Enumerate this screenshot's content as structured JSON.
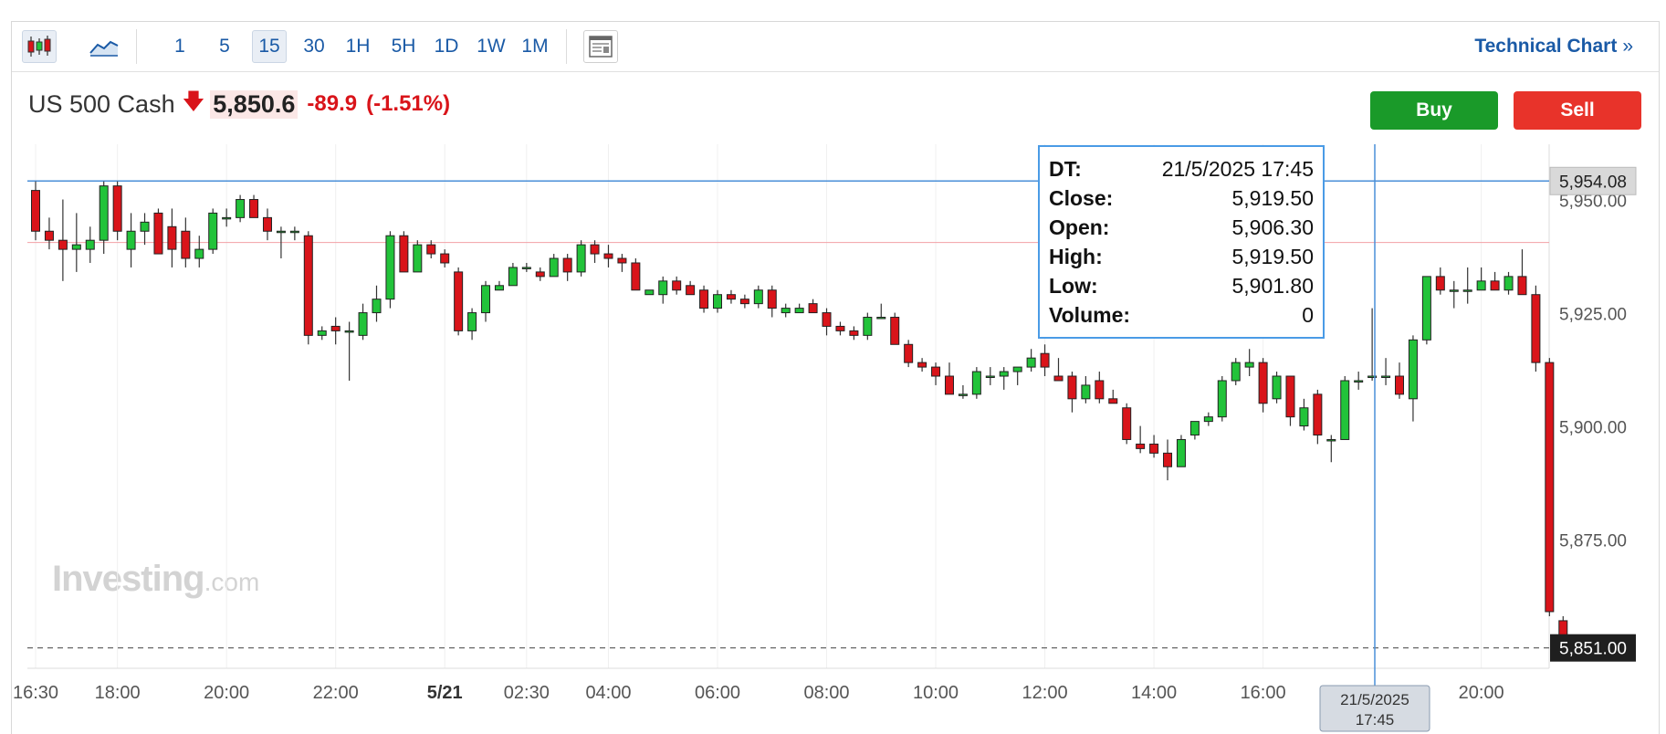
{
  "toolbar": {
    "intervals": [
      "1",
      "5",
      "15",
      "30",
      "1H",
      "5H",
      "1D",
      "1W",
      "1M"
    ],
    "selected_interval": "15",
    "technical_chart_label": "Technical Chart",
    "technical_chart_chevron": "»"
  },
  "instrument": {
    "name": "US 500 Cash",
    "price": "5,850.6",
    "change": "-89.9",
    "change_pct": "(-1.51%)",
    "direction": "down"
  },
  "actions": {
    "buy_label": "Buy",
    "sell_label": "Sell"
  },
  "colors": {
    "up": "#22c33a",
    "down": "#d9141a",
    "accent": "#1a5aa6",
    "crosshair": "#4a8fd8"
  },
  "tooltip": {
    "dt_label": "DT:",
    "dt": "21/5/2025 17:45",
    "close_label": "Close:",
    "close": "5,919.50",
    "open_label": "Open:",
    "open": "5,906.30",
    "high_label": "High:",
    "high": "5,919.50",
    "low_label": "Low:",
    "low": "5,901.80",
    "volume_label": "Volume:",
    "volume": "0"
  },
  "watermark": {
    "brand": "Investing",
    "suffix": ".com"
  },
  "chart_data": {
    "type": "candlestick",
    "title": "",
    "xlabel": "",
    "ylabel": "",
    "ylim": [
      5846.5,
      5962.2
    ],
    "y_ticks": [
      "5,875.00",
      "5,900.00",
      "5,925.00",
      "5,950.00"
    ],
    "y_tick_values": [
      5875,
      5900,
      5925,
      5950
    ],
    "x_ticks": [
      "16:30",
      "18:00",
      "20:00",
      "22:00",
      "5/21",
      "02:30",
      "04:00",
      "06:00",
      "08:00",
      "10:00",
      "12:00",
      "14:00",
      "16:00",
      "20:00"
    ],
    "bold_x_ticks": [
      "5/21"
    ],
    "reference_lines": [
      {
        "value": 5954.08,
        "label": "5,954.08",
        "style": "solid-blue"
      },
      {
        "value": 5940.5,
        "label": "",
        "style": "solid-pink"
      },
      {
        "value": 5851.0,
        "label": "5,851.00",
        "style": "dashed-last"
      }
    ],
    "crosshair": {
      "x_label_date": "21/5/2025",
      "x_label_time": "17:45"
    },
    "grid": "vertical-only",
    "candles": [
      [
        5952,
        5954,
        5941,
        5943
      ],
      [
        5943,
        5946,
        5939,
        5941
      ],
      [
        5941,
        5950,
        5932,
        5939
      ],
      [
        5939,
        5947,
        5934,
        5940
      ],
      [
        5939,
        5944,
        5936,
        5941
      ],
      [
        5941,
        5954,
        5938,
        5953
      ],
      [
        5953,
        5954,
        5941,
        5943
      ],
      [
        5939,
        5947,
        5935,
        5943
      ],
      [
        5943,
        5947,
        5940,
        5945
      ],
      [
        5947,
        5948,
        5938,
        5938
      ],
      [
        5944,
        5948,
        5935,
        5939
      ],
      [
        5943,
        5946,
        5935,
        5937
      ],
      [
        5937,
        5942,
        5935,
        5939
      ],
      [
        5939,
        5948,
        5938,
        5947
      ],
      [
        5946,
        5948,
        5944,
        5946
      ],
      [
        5946,
        5951,
        5945,
        5950
      ],
      [
        5950,
        5951,
        5946,
        5946
      ],
      [
        5946,
        5948,
        5941,
        5943
      ],
      [
        5943,
        5944,
        5937,
        5943
      ],
      [
        5943,
        5944,
        5941,
        5943
      ],
      [
        5942,
        5943,
        5918,
        5920
      ],
      [
        5920,
        5922,
        5919,
        5921
      ],
      [
        5922,
        5924,
        5918,
        5921
      ],
      [
        5921,
        5923,
        5910,
        5921
      ],
      [
        5920,
        5927,
        5919,
        5925
      ],
      [
        5925,
        5931,
        5923,
        5928
      ],
      [
        5928,
        5943,
        5926,
        5942
      ],
      [
        5942,
        5943,
        5934,
        5934
      ],
      [
        5934,
        5941,
        5934,
        5940
      ],
      [
        5940,
        5941,
        5937,
        5938
      ],
      [
        5938,
        5939,
        5935,
        5936
      ],
      [
        5934,
        5935,
        5920,
        5921
      ],
      [
        5921,
        5926,
        5919,
        5925
      ],
      [
        5925,
        5932,
        5923,
        5931
      ],
      [
        5930,
        5932,
        5930,
        5931
      ],
      [
        5931,
        5936,
        5931,
        5935
      ],
      [
        5935,
        5936,
        5934,
        5935
      ],
      [
        5934,
        5935,
        5932,
        5933
      ],
      [
        5933,
        5938,
        5933,
        5937
      ],
      [
        5937,
        5938,
        5932,
        5934
      ],
      [
        5934,
        5941,
        5933,
        5940
      ],
      [
        5940,
        5941,
        5936,
        5938
      ],
      [
        5938,
        5940,
        5935,
        5937
      ],
      [
        5937,
        5938,
        5934,
        5936
      ],
      [
        5936,
        5937,
        5930,
        5930
      ],
      [
        5929,
        5930,
        5929,
        5930
      ],
      [
        5929,
        5933,
        5927,
        5932
      ],
      [
        5932,
        5933,
        5929,
        5930
      ],
      [
        5931,
        5932,
        5929,
        5929
      ],
      [
        5930,
        5931,
        5925,
        5926
      ],
      [
        5926,
        5930,
        5925,
        5929
      ],
      [
        5929,
        5930,
        5927,
        5928
      ],
      [
        5928,
        5929,
        5926,
        5927
      ],
      [
        5927,
        5931,
        5926,
        5930
      ],
      [
        5930,
        5931,
        5924,
        5926
      ],
      [
        5925,
        5927,
        5924,
        5926
      ],
      [
        5925,
        5927,
        5925,
        5926
      ],
      [
        5927,
        5928,
        5925,
        5925
      ],
      [
        5925,
        5926,
        5920,
        5922
      ],
      [
        5922,
        5923,
        5920,
        5921
      ],
      [
        5921,
        5922,
        5919,
        5920
      ],
      [
        5920,
        5925,
        5919,
        5924
      ],
      [
        5924,
        5927,
        5924,
        5924
      ],
      [
        5924,
        5925,
        5918,
        5918
      ],
      [
        5918,
        5919,
        5913,
        5914
      ],
      [
        5914,
        5915,
        5912,
        5913
      ],
      [
        5913,
        5914,
        5909,
        5911
      ],
      [
        5911,
        5914,
        5907,
        5907
      ],
      [
        5907,
        5909,
        5906,
        5907
      ],
      [
        5907,
        5913,
        5906,
        5912
      ],
      [
        5911,
        5913,
        5909,
        5911
      ],
      [
        5911,
        5913,
        5908,
        5912
      ],
      [
        5912,
        5913,
        5909,
        5913
      ],
      [
        5913,
        5917,
        5912,
        5915
      ],
      [
        5916,
        5918,
        5911,
        5913
      ],
      [
        5911,
        5915,
        5910,
        5910
      ],
      [
        5911,
        5912,
        5903,
        5906
      ],
      [
        5906,
        5911,
        5905,
        5909
      ],
      [
        5910,
        5912,
        5905,
        5906
      ],
      [
        5906,
        5908,
        5905,
        5905
      ],
      [
        5904,
        5905,
        5896,
        5897
      ],
      [
        5896,
        5900,
        5894,
        5895
      ],
      [
        5896,
        5898,
        5893,
        5894
      ],
      [
        5894,
        5897,
        5888,
        5891
      ],
      [
        5891,
        5898,
        5891,
        5897
      ],
      [
        5898,
        5901,
        5897,
        5901
      ],
      [
        5901,
        5903,
        5900,
        5902
      ],
      [
        5902,
        5911,
        5901,
        5910
      ],
      [
        5910,
        5915,
        5909,
        5914
      ],
      [
        5913,
        5917,
        5911,
        5914
      ],
      [
        5914,
        5915,
        5903,
        5905
      ],
      [
        5906,
        5912,
        5905,
        5911
      ],
      [
        5911,
        5911,
        5900,
        5902
      ],
      [
        5900,
        5906,
        5899,
        5904
      ],
      [
        5907,
        5908,
        5896,
        5898
      ],
      [
        5897,
        5898,
        5892,
        5897
      ],
      [
        5897,
        5911,
        5897,
        5910
      ],
      [
        5910,
        5912,
        5908,
        5910
      ],
      [
        5911,
        5926,
        5910,
        5911
      ],
      [
        5911,
        5915,
        5909,
        5911
      ],
      [
        5911,
        5914,
        5906,
        5907
      ],
      [
        5906,
        5920,
        5901,
        5919
      ],
      [
        5919,
        5933,
        5918,
        5933
      ],
      [
        5933,
        5935,
        5929,
        5930
      ],
      [
        5930,
        5932,
        5926,
        5930
      ],
      [
        5930,
        5935,
        5927,
        5930
      ],
      [
        5930,
        5935,
        5930,
        5932
      ],
      [
        5932,
        5934,
        5930,
        5930
      ],
      [
        5930,
        5934,
        5929,
        5933
      ],
      [
        5933,
        5939,
        5929,
        5929
      ],
      [
        5929,
        5931,
        5912,
        5914
      ],
      [
        5914,
        5915,
        5858,
        5859
      ],
      [
        5857,
        5858,
        5851,
        5851
      ]
    ]
  }
}
